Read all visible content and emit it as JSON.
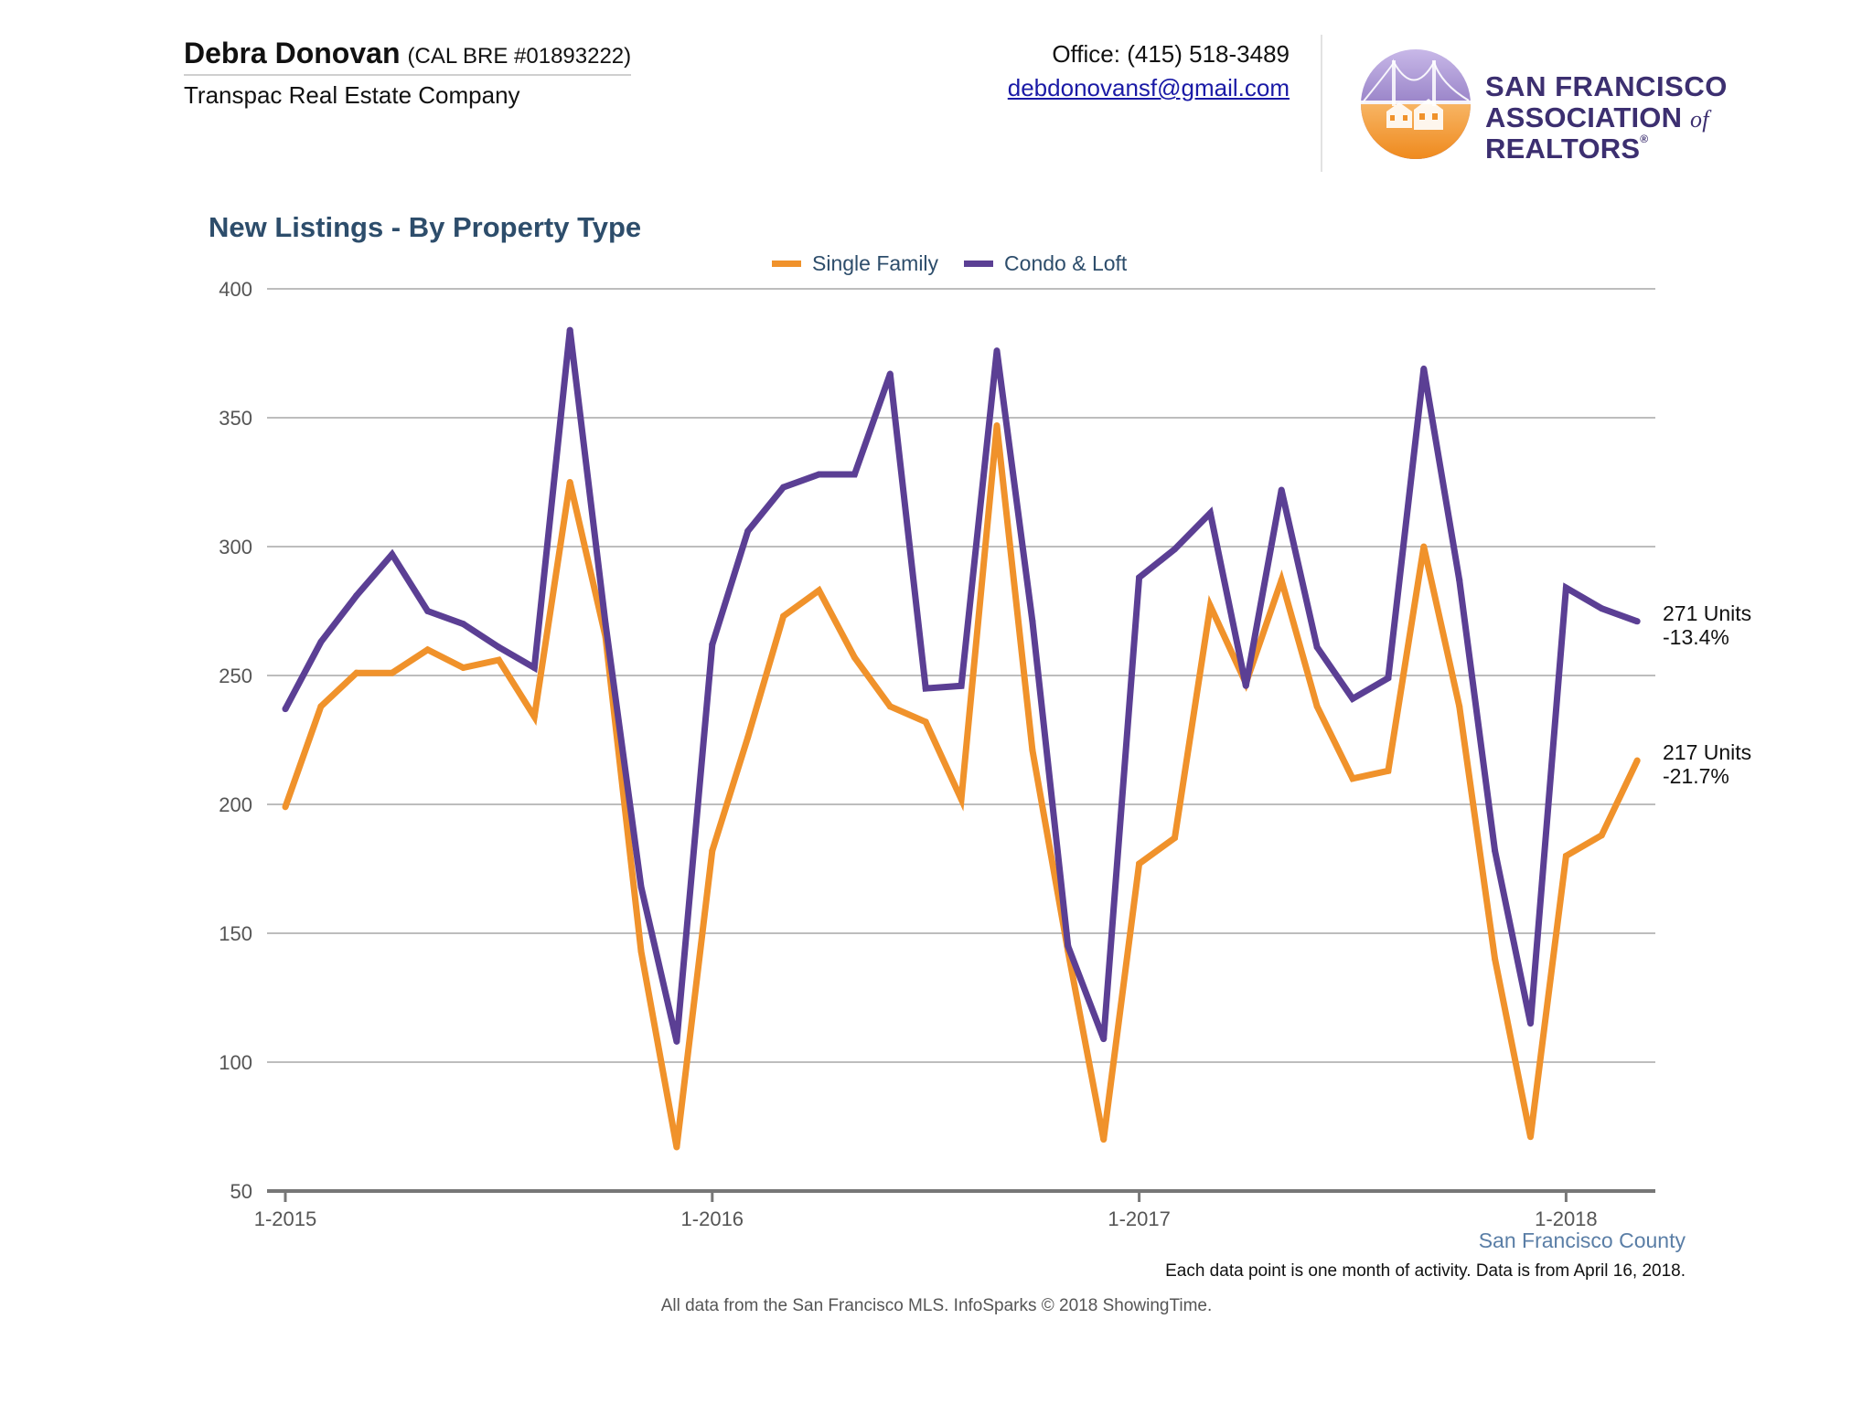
{
  "header": {
    "agent_name": "Debra Donovan",
    "agent_license": "(CAL BRE #01893222)",
    "company": "Transpac Real Estate Company",
    "office_phone": "Office: (415) 518-3489",
    "email": "debdonovansf@gmail.com",
    "logo": {
      "line1": "SAN FRANCISCO",
      "line2_a": "ASSOCIATION",
      "line2_of": "of",
      "line2_b": "REALTORS",
      "registered": "®",
      "icon": "golden-gate-bridge-houses-seal-icon"
    }
  },
  "colors": {
    "single_family": "#f0922b",
    "condo_loft": "#5b3f94",
    "title": "#2d4d6b",
    "grid": "#bdbdbd",
    "axis": "#777777"
  },
  "chart_data": {
    "type": "line",
    "title": "New Listings - By Property Type",
    "xlabel": "",
    "ylabel": "",
    "ylim": [
      50,
      400
    ],
    "yticks": [
      50,
      100,
      150,
      200,
      250,
      300,
      350,
      400
    ],
    "xticks": [
      "1-2015",
      "1-2016",
      "1-2017",
      "1-2018"
    ],
    "legend_position": "top-center",
    "grid": true,
    "x": [
      "1-2015",
      "2-2015",
      "3-2015",
      "4-2015",
      "5-2015",
      "6-2015",
      "7-2015",
      "8-2015",
      "9-2015",
      "10-2015",
      "11-2015",
      "12-2015",
      "1-2016",
      "2-2016",
      "3-2016",
      "4-2016",
      "5-2016",
      "6-2016",
      "7-2016",
      "8-2016",
      "9-2016",
      "10-2016",
      "11-2016",
      "12-2016",
      "1-2017",
      "2-2017",
      "3-2017",
      "4-2017",
      "5-2017",
      "6-2017",
      "7-2017",
      "8-2017",
      "9-2017",
      "10-2017",
      "11-2017",
      "12-2017",
      "1-2018",
      "2-2018",
      "3-2018"
    ],
    "series": [
      {
        "name": "Single Family",
        "values": [
          199,
          238,
          251,
          251,
          260,
          253,
          256,
          234,
          325,
          265,
          143,
          67,
          182,
          226,
          273,
          283,
          257,
          238,
          232,
          202,
          347,
          221,
          143,
          70,
          177,
          187,
          277,
          247,
          287,
          238,
          210,
          213,
          300,
          238,
          140,
          71,
          180,
          188,
          217
        ],
        "end_label": "217 Units",
        "end_change": "-21.7%"
      },
      {
        "name": "Condo & Loft",
        "values": [
          237,
          263,
          281,
          297,
          275,
          270,
          261,
          253,
          384,
          270,
          168,
          108,
          262,
          306,
          323,
          328,
          328,
          367,
          245,
          246,
          376,
          271,
          145,
          109,
          288,
          299,
          313,
          246,
          322,
          261,
          241,
          249,
          369,
          287,
          182,
          115,
          284,
          276,
          271
        ],
        "end_label": "271 Units",
        "end_change": "-13.4%"
      }
    ]
  },
  "region": "San Francisco County",
  "note": "Each data point is one month of activity. Data is from April 16, 2018.",
  "footer": "All data from the San Francisco MLS. InfoSparks © 2018 ShowingTime."
}
